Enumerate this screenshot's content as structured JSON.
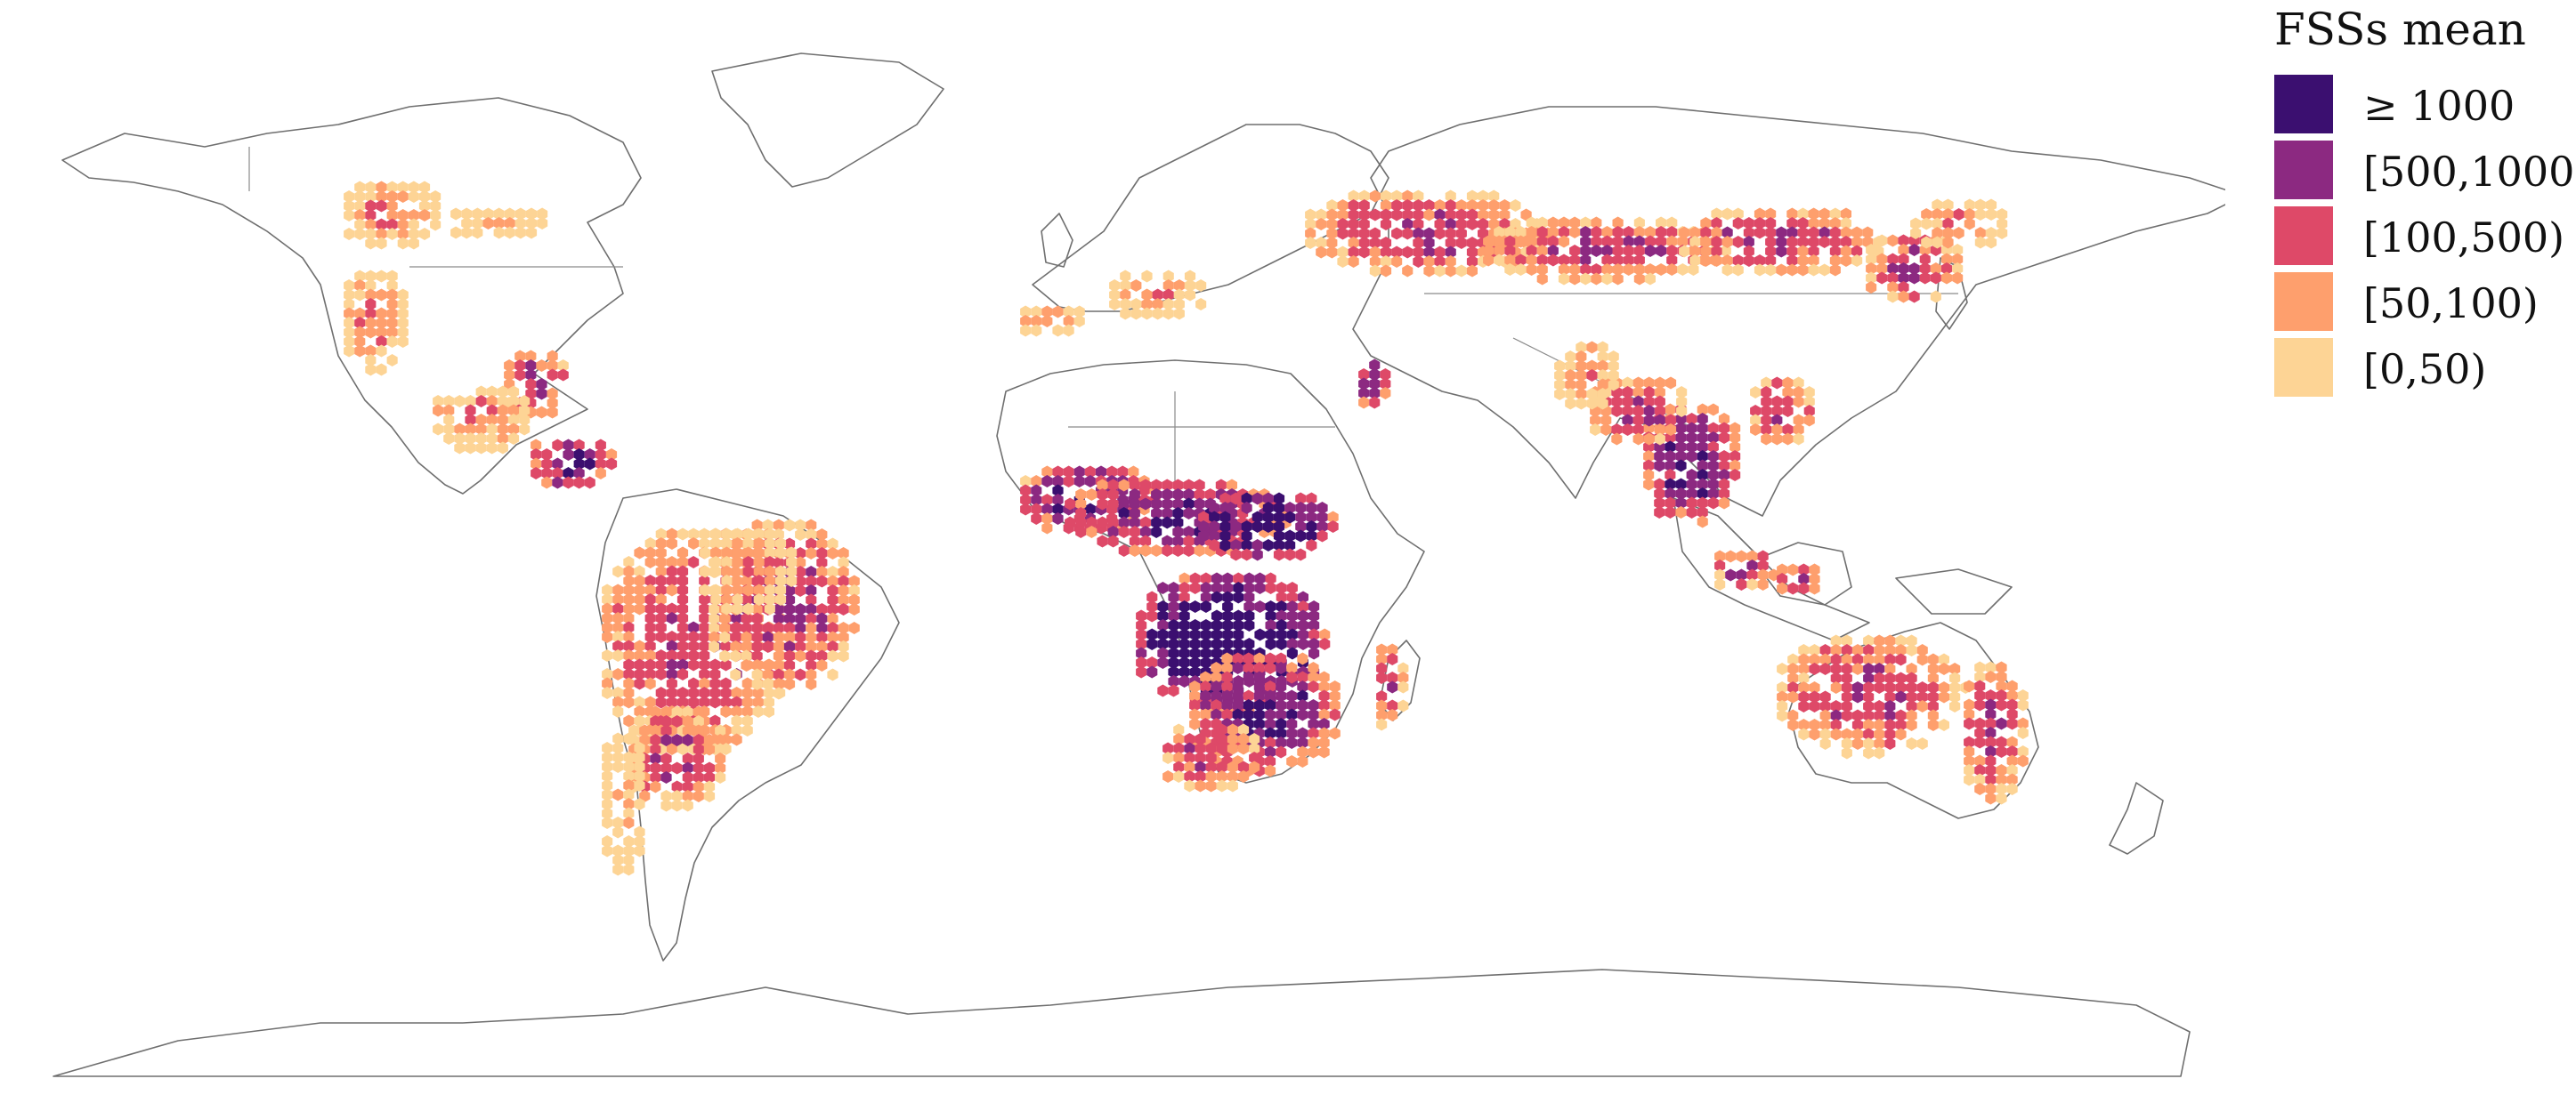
{
  "legend": {
    "title": "FSSs mean",
    "items": [
      {
        "label": "≥ 1000",
        "color": "#3b0f70"
      },
      {
        "label": "[500,1000)",
        "color": "#8c2981"
      },
      {
        "label": "[100,500)",
        "color": "#de4968"
      },
      {
        "label": "[50,100)",
        "color": "#fe9f6d"
      },
      {
        "label": "[0,50)",
        "color": "#fdd495"
      }
    ]
  },
  "map": {
    "projection": "equirectangular world map",
    "layer": "hexagon bins colored by FSSs mean",
    "basemap_colors": {
      "coastline": "#6f6f6f",
      "background": "#ffffff"
    }
  }
}
